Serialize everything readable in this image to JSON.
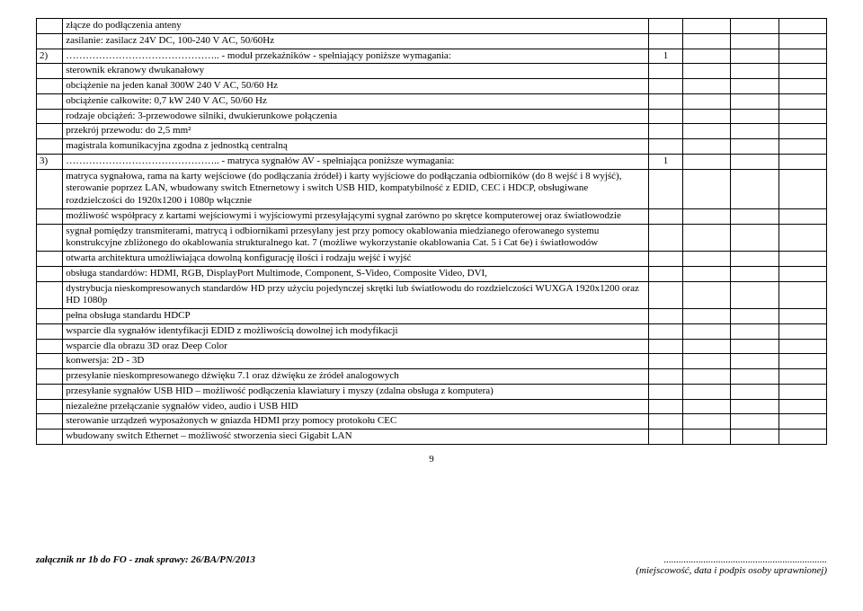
{
  "rows": [
    {
      "num": "",
      "text": "złącze do podłączenia anteny",
      "qty": "",
      "openSides": "tblr-continue"
    },
    {
      "num": "",
      "text": "zasilanie: zasilacz 24V DC, 100-240 V AC, 50/60Hz",
      "qty": "",
      "openSides": ""
    },
    {
      "num": "2)",
      "text": "……………………………………….. - moduł przekaźników - spełniający poniższe wymagania:",
      "qty": "1",
      "openSides": ""
    },
    {
      "num": "",
      "text": "sterownik ekranowy dwukanałowy",
      "qty": "",
      "openSides": ""
    },
    {
      "num": "",
      "text": "obciążenie na jeden kanał 300W 240 V AC, 50/60 Hz",
      "qty": "",
      "openSides": ""
    },
    {
      "num": "",
      "text": "obciążenie całkowite: 0,7 kW 240 V AC, 50/60 Hz",
      "qty": "",
      "openSides": ""
    },
    {
      "num": "",
      "text": "rodzaje obciążeń: 3-przewodowe silniki, dwukierunkowe połączenia",
      "qty": "",
      "openSides": ""
    },
    {
      "num": "",
      "text": "przekrój przewodu: do 2,5 mm²",
      "qty": "",
      "openSides": ""
    },
    {
      "num": "",
      "text": "magistrala komunikacyjna zgodna z jednostką centralną",
      "qty": "",
      "openSides": ""
    },
    {
      "num": "3)",
      "text": "……………………………………….. - matryca sygnałów AV - spełniająca poniższe wymagania:",
      "qty": "1",
      "openSides": ""
    },
    {
      "num": "",
      "text": "matryca sygnałowa, rama na karty wejściowe (do podłączania źródeł) i karty wyjściowe do podłączania odbiorników (do 8 wejść i 8 wyjść), sterowanie poprzez LAN, wbudowany switch Etnernetowy i switch USB HID, kompatybilność z EDID, CEC i HDCP, obsługiwane rozdzielczości do 1920x1200 i 1080p włącznie",
      "qty": "",
      "openSides": ""
    },
    {
      "num": "",
      "text": "możliwość współpracy z kartami wejściowymi i wyjściowymi przesyłającymi sygnał zarówno po skrętce komputerowej oraz światłowodzie",
      "qty": "",
      "openSides": ""
    },
    {
      "num": "",
      "text": "sygnał pomiędzy transmiterami, matrycą i odbiornikami przesyłany jest przy pomocy okablowania miedzianego oferowanego systemu konstrukcyjne zbliżonego do okablowania strukturalnego kat. 7 (możliwe wykorzystanie okablowania Cat. 5 i Cat 6e) i światłowodów",
      "qty": "",
      "openSides": ""
    },
    {
      "num": "",
      "text": "otwarta architektura umożliwiająca dowolną konfigurację ilości i rodzaju wejść i wyjść",
      "qty": "",
      "openSides": ""
    },
    {
      "num": "",
      "text": "obsługa standardów: HDMI, RGB, DisplayPort Multimode, Component, S-Video, Composite Video, DVI,",
      "qty": "",
      "openSides": ""
    },
    {
      "num": "",
      "text": "dystrybucja nieskompresowanych standardów HD przy użyciu pojedynczej skrętki lub światłowodu do rozdzielczości WUXGA 1920x1200 oraz HD 1080p",
      "qty": "",
      "openSides": ""
    },
    {
      "num": "",
      "text": "pełna obsługa standardu HDCP",
      "qty": "",
      "openSides": ""
    },
    {
      "num": "",
      "text": "wsparcie dla sygnałów identyfikacji EDID z możliwością dowolnej ich modyfikacji",
      "qty": "",
      "openSides": ""
    },
    {
      "num": "",
      "text": "wsparcie dla obrazu 3D oraz Deep Color",
      "qty": "",
      "openSides": ""
    },
    {
      "num": "",
      "text": "konwersja: 2D - 3D",
      "qty": "",
      "openSides": ""
    },
    {
      "num": "",
      "text": "przesyłanie nieskompresowanego dźwięku 7.1 oraz dźwięku ze źródeł analogowych",
      "qty": "",
      "openSides": ""
    },
    {
      "num": "",
      "text": "przesyłanie sygnałów USB HID – możliwość podłączenia klawiatury i myszy (zdalna obsługa z komputera)",
      "qty": "",
      "openSides": ""
    },
    {
      "num": "",
      "text": "niezależne przełączanie sygnałów video, audio i USB HID",
      "qty": "",
      "openSides": ""
    },
    {
      "num": "",
      "text": "sterowanie urządzeń wyposażonych w gniazda HDMI przy pomocy protokołu CEC",
      "qty": "",
      "openSides": ""
    },
    {
      "num": "",
      "text": "wbudowany switch Ethernet – możliwość stworzenia sieci Gigabit LAN",
      "qty": "",
      "openSides": ""
    }
  ],
  "pageNumber": "9",
  "footerLeft": "załącznik nr 1b do FO - znak sprawy: 26/BA/PN/2013",
  "footerRightTop": "..................................................................",
  "footerRightBottom": "(miejscowość, data i podpis osoby uprawnionej)"
}
